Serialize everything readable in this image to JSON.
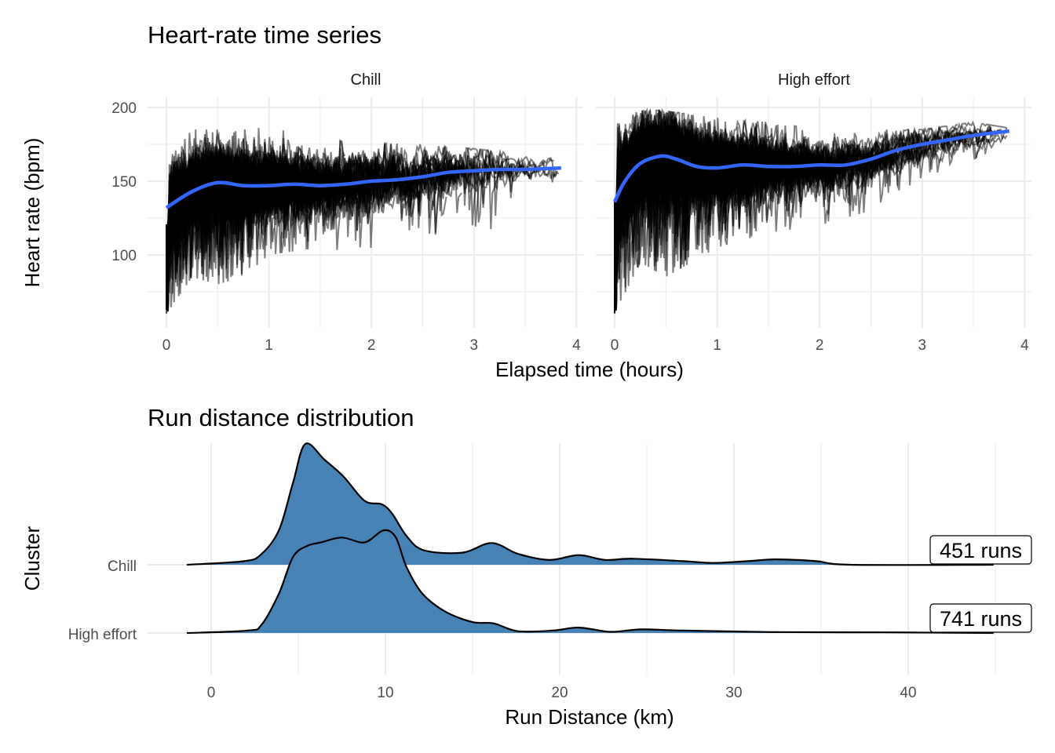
{
  "chart_data": [
    {
      "type": "line",
      "title": "Heart-rate time series",
      "xlabel": "Elapsed time (hours)",
      "ylabel": "Heart rate (bpm)",
      "xlim": [
        0,
        4
      ],
      "ylim": [
        55,
        207
      ],
      "x_ticks": [
        "0",
        "1",
        "2",
        "3",
        "4"
      ],
      "y_ticks": [
        "100",
        "150",
        "200"
      ],
      "grid": true,
      "colors": {
        "raw_lines": "#000000",
        "smooth": "#3366FF"
      },
      "facets": [
        {
          "name": "Chill",
          "smooth": {
            "x": [
              0,
              0.25,
              0.5,
              0.75,
              1,
              1.25,
              1.5,
              1.75,
              2,
              2.25,
              2.5,
              2.75,
              3,
              3.25,
              3.5,
              3.85
            ],
            "y": [
              132,
              143,
              149,
              147,
              147,
              148,
              147,
              148,
              150,
              151,
              153,
              156,
              157,
              158,
              158,
              159
            ]
          },
          "raw_envelope": {
            "x": [
              0,
              0.25,
              0.5,
              0.75,
              1,
              1.5,
              2,
              2.5,
              3,
              3.25,
              3.5,
              3.85
            ],
            "lower": [
              60,
              85,
              80,
              85,
              100,
              105,
              100,
              115,
              110,
              120,
              145,
              150
            ],
            "upper": [
              163,
              185,
              185,
              185,
              187,
              178,
              176,
              175,
              172,
              170,
              168,
              166
            ]
          }
        },
        {
          "name": "High effort",
          "smooth": {
            "x": [
              0,
              0.1,
              0.25,
              0.45,
              0.6,
              0.8,
              1,
              1.25,
              1.5,
              1.75,
              2,
              2.25,
              2.5,
              2.75,
              3,
              3.25,
              3.5,
              3.85
            ],
            "y": [
              136,
              150,
              162,
              167,
              165,
              160,
              159,
              161,
              160,
              160,
              161,
              161,
              165,
              171,
              175,
              178,
              181,
              184
            ]
          },
          "raw_envelope": {
            "x": [
              0,
              0.25,
              0.5,
              0.75,
              1,
              1.5,
              2,
              2.5,
              3,
              3.5,
              3.85
            ],
            "lower": [
              60,
              95,
              85,
              95,
              105,
              115,
              120,
              130,
              150,
              165,
              175
            ],
            "upper": [
              190,
              198,
              198,
              195,
              193,
              190,
              185,
              185,
              185,
              190,
              186
            ]
          }
        }
      ]
    },
    {
      "type": "area",
      "subtype": "ridgeline density",
      "title": "Run distance distribution",
      "xlabel": "Run Distance (km)",
      "ylabel": "Cluster",
      "xlim": [
        -3.7,
        46.4
      ],
      "x_ticks": [
        "0",
        "10",
        "20",
        "30",
        "40"
      ],
      "grid": true,
      "colors": {
        "fill": "#4682B4",
        "outline": "#000000"
      },
      "density_scale": "relative to tallest peak (1.0)",
      "series": [
        {
          "name": "Chill",
          "label": "451 runs",
          "x": [
            -1.4,
            1.9,
            2.9,
            3.9,
            4.7,
            5.4,
            6.5,
            7.6,
            8.8,
            9.8,
            10.4,
            11.2,
            12.2,
            14.4,
            16.1,
            17.6,
            19.4,
            21.1,
            22.6,
            24.2,
            27.1,
            28.8,
            30.8,
            32.4,
            34.7,
            36.7,
            44.9
          ],
          "density": [
            0,
            0.03,
            0.09,
            0.29,
            0.68,
            1.0,
            0.87,
            0.73,
            0.53,
            0.5,
            0.42,
            0.24,
            0.12,
            0.1,
            0.18,
            0.09,
            0.04,
            0.08,
            0.04,
            0.05,
            0.03,
            0.015,
            0.03,
            0.045,
            0.03,
            0,
            0
          ]
        },
        {
          "name": "High effort",
          "label": "741 runs",
          "x": [
            -1.4,
            2.1,
            2.9,
            3.9,
            4.7,
            5.5,
            6.3,
            7.5,
            8.8,
            9.9,
            10.6,
            11.2,
            12.1,
            13.4,
            15.0,
            16.2,
            17.6,
            19.6,
            21.1,
            22.9,
            24.7,
            27.1,
            32.1,
            38.7,
            44.9
          ],
          "density": [
            0,
            0.02,
            0.07,
            0.33,
            0.63,
            0.72,
            0.75,
            0.79,
            0.75,
            0.85,
            0.79,
            0.55,
            0.33,
            0.18,
            0.09,
            0.08,
            0.015,
            0.02,
            0.045,
            0.01,
            0.03,
            0.02,
            0.008,
            0.005,
            0
          ]
        }
      ]
    }
  ]
}
